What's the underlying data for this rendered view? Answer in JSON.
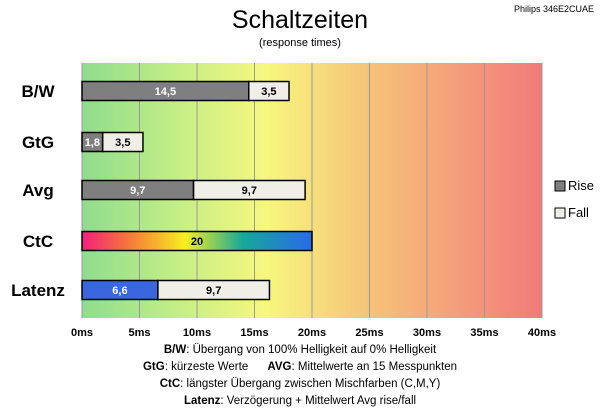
{
  "chart_data": {
    "type": "bar",
    "orientation": "horizontal",
    "stacked": true,
    "title": "Schaltzeiten",
    "subtitle": "(response times)",
    "model": "Philips 346E2CUAE",
    "categories": [
      "B/W",
      "GtG",
      "Avg",
      "CtC",
      "Latenz"
    ],
    "series": [
      {
        "name": "Rise",
        "values": [
          14.5,
          1.8,
          9.7,
          null,
          null
        ]
      },
      {
        "name": "Fall",
        "values": [
          3.5,
          3.5,
          9.7,
          null,
          9.7
        ]
      }
    ],
    "special_bars": {
      "CtC": {
        "value": 20,
        "label": "20",
        "fill": "rainbow"
      },
      "Latenz": {
        "value": 6.6,
        "label": "6,6",
        "fill": "#3a66e0"
      }
    },
    "value_labels": [
      [
        "14,5",
        "3,5"
      ],
      [
        "1,8",
        "3,5"
      ],
      [
        "9,7",
        "9,7"
      ],
      [
        "20"
      ],
      [
        "6,6",
        "9,7"
      ]
    ],
    "xlim": [
      0,
      40
    ],
    "xticks": [
      0,
      5,
      10,
      15,
      20,
      25,
      30,
      35,
      40
    ],
    "xtick_labels": [
      "0ms",
      "5ms",
      "10ms",
      "15ms",
      "20ms",
      "25ms",
      "30ms",
      "35ms",
      "40ms"
    ],
    "grid": true,
    "background": "gradient green-yellow-red",
    "legend_position": "right",
    "colors": {
      "rise": "#7f7f7f",
      "fall": "#efefe8",
      "latenz": "#3a66e0",
      "grad_green": "#8fdc8f",
      "grad_yellow": "#f7f77e",
      "grad_orange": "#f6c479",
      "grad_red": "#f27a7a"
    }
  },
  "notes": [
    {
      "key": "B/W",
      "text": ":  Übergang von 100% Helligkeit auf 0% Helligkeit"
    },
    {
      "key": "GtG",
      "text": ": kürzeste  Werte",
      "key2": "AVG",
      "text2": ": Mittelwerte  an 15 Messpunkten"
    },
    {
      "key": "CtC",
      "text": ": längster Übergang  zwischen Mischfarben  (C,M,Y)"
    },
    {
      "key": "Latenz",
      "text": ": Verzögerung  + Mittelwert  Avg rise/fall"
    }
  ]
}
